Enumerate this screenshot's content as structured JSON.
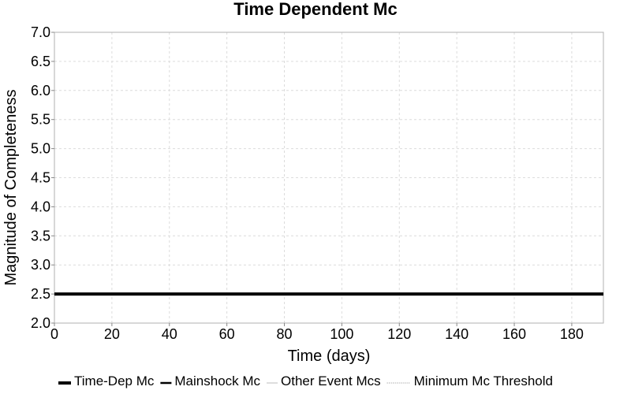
{
  "chart_data": {
    "type": "line",
    "title": "Time Dependent Mc",
    "xlabel": "Time (days)",
    "ylabel": "Magnitude of Completeness",
    "xlim": [
      0,
      191
    ],
    "ylim": [
      2.0,
      7.0
    ],
    "x_ticks": [
      0,
      20,
      40,
      60,
      80,
      100,
      120,
      140,
      160,
      180
    ],
    "x_tick_labels": [
      "0",
      "20",
      "40",
      "60",
      "80",
      "100",
      "120",
      "140",
      "160",
      "180"
    ],
    "y_ticks": [
      2.0,
      2.5,
      3.0,
      3.5,
      4.0,
      4.5,
      5.0,
      5.5,
      6.0,
      6.5,
      7.0
    ],
    "y_tick_labels": [
      "2.0",
      "2.5",
      "3.0",
      "3.5",
      "4.0",
      "4.5",
      "5.0",
      "5.5",
      "6.0",
      "6.5",
      "7.0"
    ],
    "grid": true,
    "legend_position": "bottom",
    "series": [
      {
        "name": "Time-Dep Mc",
        "x": [
          0,
          191
        ],
        "y": [
          2.5,
          2.5
        ],
        "color": "#000000",
        "style": "thick"
      },
      {
        "name": "Mainshock Mc",
        "x": [],
        "y": [],
        "color": "#000000",
        "style": "solid"
      },
      {
        "name": "Other Event Mcs",
        "x": [],
        "y": [],
        "color": "#bbbbbb",
        "style": "thin"
      },
      {
        "name": "Minimum Mc Threshold",
        "x": [],
        "y": [],
        "color": "#888888",
        "style": "dotted"
      }
    ]
  }
}
